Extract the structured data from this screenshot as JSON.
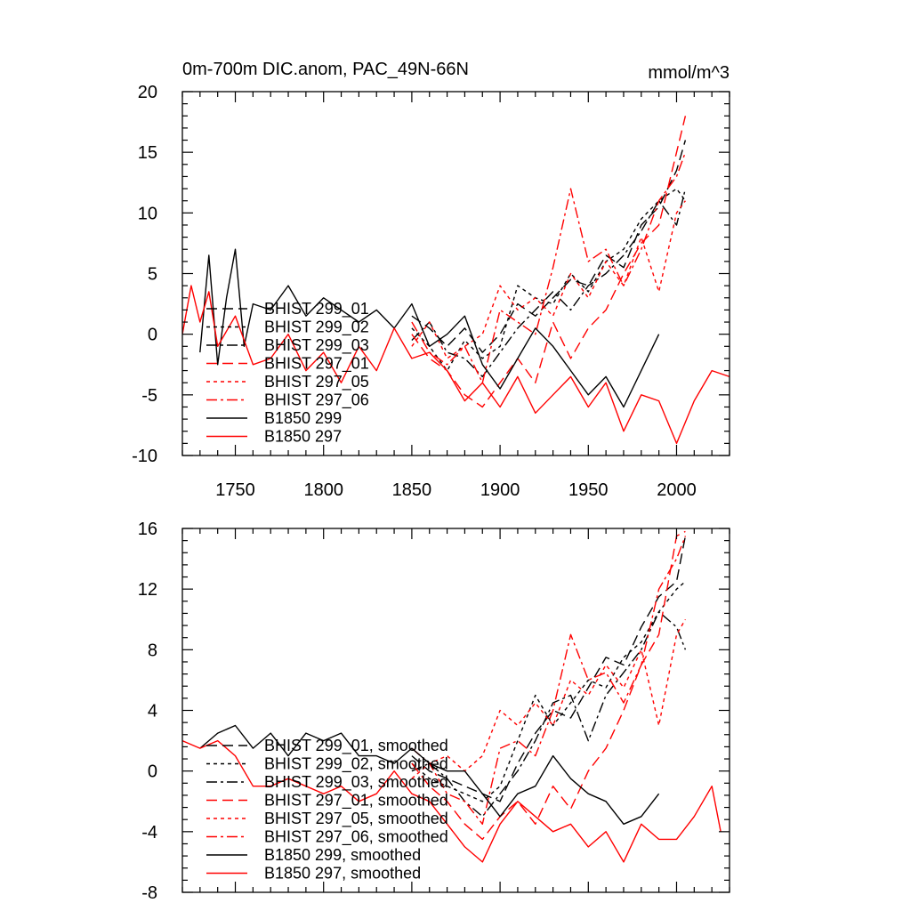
{
  "chart_data": [
    {
      "type": "line",
      "title": "0m-700m DIC.anom, PAC_49N-66N",
      "title_right": "mmol/m^3",
      "xlim": [
        1720,
        2030
      ],
      "ylim": [
        -10,
        20
      ],
      "x_ticks": [
        1750,
        1800,
        1850,
        1900,
        1950,
        2000
      ],
      "x_tick_labels": [
        "1750",
        "1800",
        "1850",
        "1900",
        "1950",
        "2000"
      ],
      "y_ticks": [
        -10,
        -5,
        0,
        5,
        10,
        15,
        20
      ],
      "y_tick_labels": [
        "-10",
        "-5",
        "0",
        "5",
        "10",
        "15",
        "20"
      ],
      "legend_position": "lower-left",
      "series": [
        {
          "name": "BHIST 299_01",
          "color": "#000000",
          "dash": "12,6",
          "x": [
            1850,
            1860,
            1870,
            1880,
            1890,
            1900,
            1910,
            1920,
            1930,
            1940,
            1950,
            1960,
            1970,
            1980,
            1990,
            2000,
            2005
          ],
          "y": [
            1.5,
            0.5,
            -1.0,
            0.5,
            -1.5,
            0.0,
            2.5,
            1.5,
            3.0,
            4.5,
            4.0,
            6.5,
            5.5,
            9.0,
            10.5,
            13.5,
            16.0
          ]
        },
        {
          "name": "BHIST 299_02",
          "color": "#000000",
          "dash": "4,4",
          "x": [
            1850,
            1860,
            1870,
            1880,
            1890,
            1900,
            1910,
            1920,
            1930,
            1940,
            1950,
            1960,
            1970,
            1980,
            1990,
            2000,
            2005
          ],
          "y": [
            0.5,
            -1.0,
            -3.0,
            -0.5,
            -2.0,
            -1.0,
            4.0,
            3.0,
            2.5,
            5.0,
            3.5,
            6.0,
            7.0,
            9.5,
            11.0,
            12.0,
            11.0
          ]
        },
        {
          "name": "BHIST 299_03",
          "color": "#000000",
          "dash": "12,4,3,4",
          "x": [
            1850,
            1860,
            1870,
            1880,
            1890,
            1900,
            1910,
            1920,
            1930,
            1940,
            1950,
            1960,
            1970,
            1980,
            1990,
            2000,
            2005
          ],
          "y": [
            -0.5,
            1.0,
            -1.5,
            -2.0,
            -3.5,
            -1.5,
            0.5,
            2.0,
            3.5,
            2.0,
            4.0,
            5.0,
            6.5,
            8.5,
            11.0,
            9.0,
            12.0
          ]
        },
        {
          "name": "BHIST 297_01",
          "color": "#ff0000",
          "dash": "12,6",
          "x": [
            1850,
            1860,
            1870,
            1880,
            1890,
            1900,
            1910,
            1920,
            1930,
            1940,
            1950,
            1960,
            1970,
            1980,
            1990,
            2000,
            2005
          ],
          "y": [
            0.0,
            -2.0,
            -3.0,
            -5.0,
            -6.0,
            -4.0,
            -2.0,
            -4.0,
            1.0,
            -2.0,
            0.5,
            2.0,
            5.0,
            7.5,
            9.0,
            15.0,
            18.0
          ]
        },
        {
          "name": "BHIST 297_05",
          "color": "#ff0000",
          "dash": "4,4",
          "x": [
            1850,
            1860,
            1870,
            1880,
            1890,
            1900,
            1910,
            1920,
            1930,
            1940,
            1950,
            1960,
            1970,
            1980,
            1990,
            2000,
            2005
          ],
          "y": [
            -1.0,
            1.0,
            -2.0,
            -1.0,
            0.0,
            4.0,
            2.0,
            3.0,
            1.5,
            5.0,
            3.0,
            6.0,
            4.0,
            8.0,
            3.5,
            10.0,
            11.0
          ]
        },
        {
          "name": "BHIST 297_06",
          "color": "#ff0000",
          "dash": "12,4,3,4",
          "x": [
            1850,
            1860,
            1870,
            1880,
            1890,
            1900,
            1910,
            1920,
            1930,
            1940,
            1950,
            1960,
            1970,
            1980,
            1990,
            2000,
            2005
          ],
          "y": [
            1.0,
            -1.5,
            -2.5,
            -1.0,
            -4.0,
            2.0,
            1.0,
            0.0,
            5.5,
            12.0,
            6.0,
            7.0,
            4.0,
            7.0,
            11.0,
            13.0,
            15.0
          ]
        },
        {
          "name": "B1850 299",
          "color": "#000000",
          "dash": "",
          "x": [
            1730,
            1735,
            1740,
            1745,
            1750,
            1755,
            1760,
            1770,
            1780,
            1790,
            1800,
            1810,
            1820,
            1830,
            1840,
            1850,
            1860,
            1870,
            1880,
            1890,
            1900,
            1910,
            1920,
            1930,
            1940,
            1950,
            1960,
            1970,
            1980,
            1990
          ],
          "y": [
            -1.5,
            6.5,
            -2.5,
            3.0,
            7.0,
            -1.0,
            2.5,
            2.0,
            4.0,
            1.5,
            3.0,
            2.0,
            1.0,
            2.0,
            0.5,
            2.5,
            -1.0,
            0.0,
            1.5,
            -2.5,
            -4.5,
            -2.0,
            0.5,
            -1.0,
            -3.0,
            -5.0,
            -3.5,
            -6.0,
            -3.0,
            0.0
          ]
        },
        {
          "name": "B1850 297",
          "color": "#ff0000",
          "dash": "",
          "x": [
            1720,
            1725,
            1730,
            1735,
            1740,
            1750,
            1760,
            1770,
            1780,
            1790,
            1800,
            1810,
            1820,
            1830,
            1840,
            1850,
            1860,
            1870,
            1880,
            1890,
            1900,
            1910,
            1920,
            1930,
            1940,
            1950,
            1960,
            1970,
            1980,
            1990,
            2000,
            2010,
            2020,
            2030
          ],
          "y": [
            0.0,
            4.0,
            1.0,
            3.5,
            -1.0,
            1.5,
            -2.5,
            -2.0,
            0.0,
            -3.0,
            -1.5,
            -4.0,
            -1.0,
            -3.0,
            0.5,
            -2.0,
            -1.5,
            -3.0,
            -5.5,
            -4.0,
            -6.0,
            -3.5,
            -6.5,
            -5.0,
            -3.5,
            -6.0,
            -4.0,
            -8.0,
            -5.0,
            -5.5,
            -9.0,
            -5.5,
            -3.0,
            -3.5
          ]
        }
      ]
    },
    {
      "type": "line",
      "xlim": [
        1720,
        2030
      ],
      "ylim": [
        -8,
        16
      ],
      "x_ticks": [
        1750,
        1800,
        1850,
        1900,
        1950,
        2000
      ],
      "y_ticks": [
        -8,
        -4,
        0,
        4,
        8,
        12,
        16
      ],
      "y_tick_labels": [
        "-8",
        "-4",
        "0",
        "4",
        "8",
        "12",
        "16"
      ],
      "legend_position": "lower-left",
      "series": [
        {
          "name": "BHIST 299_01, smoothed",
          "color": "#000000",
          "dash": "12,6",
          "x": [
            1850,
            1860,
            1870,
            1880,
            1890,
            1900,
            1910,
            1920,
            1930,
            1940,
            1950,
            1960,
            1970,
            1980,
            1990,
            2000,
            2005
          ],
          "y": [
            1.0,
            0.0,
            -0.5,
            -1.0,
            -1.5,
            -2.0,
            0.5,
            2.5,
            4.0,
            3.5,
            5.5,
            7.5,
            7.0,
            9.5,
            11.5,
            12.5,
            15.5
          ]
        },
        {
          "name": "BHIST 299_02, smoothed",
          "color": "#000000",
          "dash": "4,4",
          "x": [
            1850,
            1860,
            1870,
            1880,
            1890,
            1900,
            1910,
            1920,
            1930,
            1940,
            1950,
            1960,
            1970,
            1980,
            1990,
            2000,
            2005
          ],
          "y": [
            0.5,
            -0.5,
            -1.0,
            -1.5,
            -2.0,
            -1.0,
            2.0,
            5.0,
            3.0,
            4.5,
            6.0,
            5.5,
            7.5,
            8.5,
            10.5,
            12.0,
            12.5
          ]
        },
        {
          "name": "BHIST 299_03, smoothed",
          "color": "#000000",
          "dash": "12,4,3,4",
          "x": [
            1850,
            1860,
            1870,
            1880,
            1890,
            1900,
            1910,
            1920,
            1930,
            1940,
            1950,
            1960,
            1970,
            1980,
            1990,
            2000,
            2005
          ],
          "y": [
            0.0,
            0.5,
            -0.5,
            -2.0,
            -3.0,
            -1.5,
            0.0,
            2.0,
            4.5,
            5.0,
            2.0,
            5.0,
            6.5,
            8.0,
            10.5,
            9.5,
            8.0
          ]
        },
        {
          "name": "BHIST 297_01, smoothed",
          "color": "#ff0000",
          "dash": "12,6",
          "x": [
            1850,
            1860,
            1870,
            1880,
            1890,
            1900,
            1910,
            1920,
            1930,
            1940,
            1950,
            1960,
            1970,
            1980,
            1990,
            2000,
            2005
          ],
          "y": [
            0.5,
            -1.0,
            -2.0,
            -3.5,
            -4.5,
            -3.0,
            -2.0,
            -3.5,
            -1.0,
            -2.5,
            0.0,
            1.5,
            4.0,
            7.0,
            9.0,
            15.5,
            15.8
          ]
        },
        {
          "name": "BHIST 297_05, smoothed",
          "color": "#ff0000",
          "dash": "4,4",
          "x": [
            1850,
            1860,
            1870,
            1880,
            1890,
            1900,
            1910,
            1920,
            1930,
            1940,
            1950,
            1960,
            1970,
            1980,
            1990,
            2000,
            2005
          ],
          "y": [
            -0.5,
            0.5,
            1.0,
            0.0,
            1.0,
            4.0,
            3.0,
            4.5,
            3.0,
            6.0,
            5.0,
            7.0,
            5.5,
            8.0,
            3.0,
            9.0,
            10.0
          ]
        },
        {
          "name": "BHIST 297_06, smoothed",
          "color": "#ff0000",
          "dash": "12,4,3,4",
          "x": [
            1850,
            1860,
            1870,
            1880,
            1890,
            1900,
            1910,
            1920,
            1930,
            1940,
            1950,
            1960,
            1970,
            1980,
            1990,
            2000,
            2005
          ],
          "y": [
            1.5,
            0.5,
            -1.5,
            -2.0,
            -3.5,
            1.5,
            2.0,
            1.0,
            4.0,
            9.0,
            6.0,
            6.5,
            4.5,
            7.0,
            12.0,
            14.0,
            15.5
          ]
        },
        {
          "name": "B1850 299, smoothed",
          "color": "#000000",
          "dash": "",
          "x": [
            1730,
            1740,
            1750,
            1760,
            1770,
            1780,
            1790,
            1800,
            1810,
            1820,
            1830,
            1840,
            1850,
            1860,
            1870,
            1880,
            1890,
            1900,
            1910,
            1920,
            1930,
            1940,
            1950,
            1960,
            1970,
            1980,
            1990
          ],
          "y": [
            1.5,
            2.5,
            3.0,
            1.5,
            2.5,
            1.0,
            2.5,
            2.0,
            2.5,
            1.0,
            1.0,
            0.5,
            1.5,
            0.5,
            0.0,
            0.0,
            -1.5,
            -3.0,
            -1.5,
            -1.0,
            1.0,
            -0.5,
            -1.5,
            -2.0,
            -3.5,
            -3.0,
            -1.5
          ]
        },
        {
          "name": "B1850 297, smoothed",
          "color": "#ff0000",
          "dash": "",
          "x": [
            1720,
            1730,
            1740,
            1750,
            1760,
            1770,
            1780,
            1790,
            1800,
            1810,
            1820,
            1830,
            1840,
            1850,
            1860,
            1870,
            1880,
            1890,
            1900,
            1910,
            1920,
            1930,
            1940,
            1950,
            1960,
            1970,
            1980,
            1990,
            2000,
            2010,
            2020,
            2025
          ],
          "y": [
            2.0,
            1.5,
            2.0,
            1.0,
            -1.0,
            -1.0,
            -0.5,
            -1.0,
            -1.5,
            -1.0,
            -2.0,
            -1.5,
            0.0,
            -1.5,
            -2.0,
            -3.5,
            -5.0,
            -6.0,
            -3.5,
            -2.0,
            -3.0,
            -4.0,
            -3.5,
            -5.0,
            -4.0,
            -6.0,
            -3.5,
            -4.5,
            -4.5,
            -3.0,
            -1.0,
            -4.0
          ]
        }
      ]
    }
  ]
}
